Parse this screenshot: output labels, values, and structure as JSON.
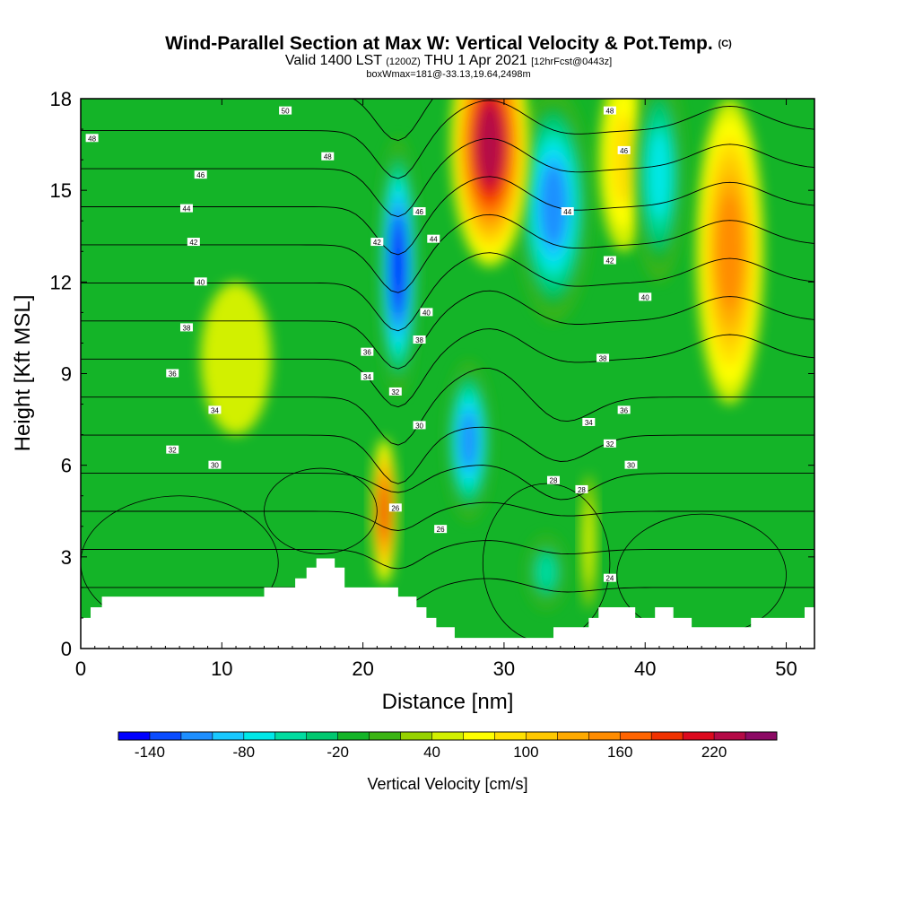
{
  "header": {
    "title_main": "Wind-Parallel Section at Max W: Vertical Velocity & Pot.Temp.",
    "title_suffix": "(C)",
    "valid_a": "Valid 1400 LST",
    "valid_b": "(1200Z)",
    "valid_c": "THU 1 Apr 2021",
    "valid_d": "[12hrFcst@0443z]",
    "boxinfo": "boxWmax=181@-33.13,19.64,2498m"
  },
  "chart_data": {
    "type": "heatmap",
    "xlabel": "Distance [nm]",
    "ylabel": "Height [Kft MSL]",
    "xlim": [
      0,
      52
    ],
    "ylim": [
      0,
      18
    ],
    "xticks": [
      0,
      10,
      20,
      30,
      40,
      50
    ],
    "yticks": [
      0,
      3,
      6,
      9,
      12,
      15,
      18
    ],
    "colorbar": {
      "title": "Vertical Velocity [cm/s]",
      "min": -160,
      "max": 260,
      "step": 20,
      "tick_labels": [
        "-140",
        "-80",
        "-20",
        "40",
        "100",
        "160",
        "220"
      ],
      "tick_values": [
        -140,
        -80,
        -20,
        40,
        100,
        160,
        220
      ],
      "colors": [
        "#0000ff",
        "#0a4cff",
        "#1e8fff",
        "#19c8ff",
        "#00e8e8",
        "#00dca0",
        "#00c870",
        "#14b428",
        "#3cb414",
        "#96d200",
        "#d2f000",
        "#ffff00",
        "#ffe100",
        "#ffc800",
        "#ffaa00",
        "#ff8c00",
        "#ff6400",
        "#f03200",
        "#dc0a1e",
        "#b40a46",
        "#8c0a64"
      ]
    },
    "velocity_cells": [
      {
        "x": 22.5,
        "y": 12.5,
        "rx": 1.4,
        "ry": 4.2,
        "w": -150
      },
      {
        "x": 27.5,
        "y": 6.8,
        "rx": 1.6,
        "ry": 2.6,
        "w": -110
      },
      {
        "x": 33.5,
        "y": 14.5,
        "rx": 2.6,
        "ry": 3.8,
        "w": -110
      },
      {
        "x": 21.5,
        "y": 4.5,
        "rx": 0.9,
        "ry": 2.4,
        "w": 180
      },
      {
        "x": 29.0,
        "y": 16.5,
        "rx": 2.8,
        "ry": 4.0,
        "w": 220
      },
      {
        "x": 46.0,
        "y": 13.0,
        "rx": 2.4,
        "ry": 5.0,
        "w": 140
      },
      {
        "x": 11.0,
        "y": 9.5,
        "rx": 2.5,
        "ry": 2.5,
        "w": 40
      },
      {
        "x": 38.5,
        "y": 16.0,
        "rx": 1.8,
        "ry": 3.0,
        "w": 80
      },
      {
        "x": 41.0,
        "y": 15.5,
        "rx": 1.8,
        "ry": 3.5,
        "w": -70
      },
      {
        "x": 33.0,
        "y": 2.5,
        "rx": 1.4,
        "ry": 1.2,
        "w": -60
      },
      {
        "x": 36.0,
        "y": 3.5,
        "rx": 0.6,
        "ry": 2.2,
        "w": 50
      }
    ],
    "theta_contours": [
      {
        "value": 24,
        "label": "24",
        "label_x": 37.5,
        "label_y": 2.3
      },
      {
        "value": 26,
        "label": "26",
        "label_x": 25.5,
        "label_y": 3.9
      },
      {
        "value": 26,
        "label": "26",
        "label_x": 22.3,
        "label_y": 4.6
      },
      {
        "value": 28,
        "label": "28",
        "label_x": 33.5,
        "label_y": 5.5
      },
      {
        "value": 28,
        "label": "28",
        "label_x": 35.5,
        "label_y": 5.2
      },
      {
        "value": 30,
        "label": "30",
        "label_x": 9.5,
        "label_y": 6.0
      },
      {
        "value": 30,
        "label": "30",
        "label_x": 24.0,
        "label_y": 7.3
      },
      {
        "value": 30,
        "label": "30",
        "label_x": 39.0,
        "label_y": 6.0
      },
      {
        "value": 32,
        "label": "32",
        "label_x": 6.5,
        "label_y": 6.5
      },
      {
        "value": 32,
        "label": "32",
        "label_x": 22.3,
        "label_y": 8.4
      },
      {
        "value": 32,
        "label": "32",
        "label_x": 37.5,
        "label_y": 6.7
      },
      {
        "value": 34,
        "label": "34",
        "label_x": 9.5,
        "label_y": 7.8
      },
      {
        "value": 34,
        "label": "34",
        "label_x": 20.3,
        "label_y": 8.9
      },
      {
        "value": 34,
        "label": "34",
        "label_x": 36.0,
        "label_y": 7.4
      },
      {
        "value": 36,
        "label": "36",
        "label_x": 6.5,
        "label_y": 9.0
      },
      {
        "value": 36,
        "label": "36",
        "label_x": 20.3,
        "label_y": 9.7
      },
      {
        "value": 36,
        "label": "36",
        "label_x": 38.5,
        "label_y": 7.8
      },
      {
        "value": 38,
        "label": "38",
        "label_x": 7.5,
        "label_y": 10.5
      },
      {
        "value": 38,
        "label": "38",
        "label_x": 24.0,
        "label_y": 10.1
      },
      {
        "value": 38,
        "label": "38",
        "label_x": 37.0,
        "label_y": 9.5
      },
      {
        "value": 40,
        "label": "40",
        "label_x": 8.5,
        "label_y": 12.0
      },
      {
        "value": 40,
        "label": "40",
        "label_x": 24.5,
        "label_y": 11.0
      },
      {
        "value": 40,
        "label": "40",
        "label_x": 40.0,
        "label_y": 11.5
      },
      {
        "value": 42,
        "label": "42",
        "label_x": 8.0,
        "label_y": 13.3
      },
      {
        "value": 42,
        "label": "42",
        "label_x": 21.0,
        "label_y": 13.3
      },
      {
        "value": 42,
        "label": "42",
        "label_x": 37.5,
        "label_y": 12.7
      },
      {
        "value": 44,
        "label": "44",
        "label_x": 7.5,
        "label_y": 14.4
      },
      {
        "value": 44,
        "label": "44",
        "label_x": 25.0,
        "label_y": 13.4
      },
      {
        "value": 44,
        "label": "44",
        "label_x": 34.5,
        "label_y": 14.3
      },
      {
        "value": 46,
        "label": "46",
        "label_x": 8.5,
        "label_y": 15.5
      },
      {
        "value": 46,
        "label": "46",
        "label_x": 24.0,
        "label_y": 14.3
      },
      {
        "value": 46,
        "label": "46",
        "label_x": 38.5,
        "label_y": 16.3
      },
      {
        "value": 48,
        "label": "48",
        "label_x": 0.8,
        "label_y": 16.7
      },
      {
        "value": 48,
        "label": "48",
        "label_x": 17.5,
        "label_y": 16.1
      },
      {
        "value": 48,
        "label": "48",
        "label_x": 37.5,
        "label_y": 17.6
      },
      {
        "value": 50,
        "label": "50",
        "label_x": 14.5,
        "label_y": 17.6
      }
    ],
    "terrain_height": [
      {
        "x": 0.0,
        "h": 1.0
      },
      {
        "x": 0.7,
        "h": 1.0
      },
      {
        "x": 0.7,
        "h": 1.35
      },
      {
        "x": 1.5,
        "h": 1.35
      },
      {
        "x": 1.5,
        "h": 1.7
      },
      {
        "x": 13.0,
        "h": 1.7
      },
      {
        "x": 13.0,
        "h": 2.0
      },
      {
        "x": 15.2,
        "h": 2.0
      },
      {
        "x": 15.2,
        "h": 2.3
      },
      {
        "x": 16.0,
        "h": 2.3
      },
      {
        "x": 16.0,
        "h": 2.65
      },
      {
        "x": 16.7,
        "h": 2.65
      },
      {
        "x": 16.7,
        "h": 2.95
      },
      {
        "x": 18.0,
        "h": 2.95
      },
      {
        "x": 18.0,
        "h": 2.65
      },
      {
        "x": 18.7,
        "h": 2.65
      },
      {
        "x": 18.7,
        "h": 2.0
      },
      {
        "x": 22.5,
        "h": 2.0
      },
      {
        "x": 22.5,
        "h": 1.7
      },
      {
        "x": 23.8,
        "h": 1.7
      },
      {
        "x": 23.8,
        "h": 1.35
      },
      {
        "x": 24.5,
        "h": 1.35
      },
      {
        "x": 24.5,
        "h": 1.0
      },
      {
        "x": 25.2,
        "h": 1.0
      },
      {
        "x": 25.2,
        "h": 0.7
      },
      {
        "x": 26.5,
        "h": 0.7
      },
      {
        "x": 26.5,
        "h": 0.35
      },
      {
        "x": 33.5,
        "h": 0.35
      },
      {
        "x": 33.5,
        "h": 0.7
      },
      {
        "x": 36.0,
        "h": 0.7
      },
      {
        "x": 36.0,
        "h": 1.0
      },
      {
        "x": 36.7,
        "h": 1.0
      },
      {
        "x": 36.7,
        "h": 1.35
      },
      {
        "x": 39.3,
        "h": 1.35
      },
      {
        "x": 39.3,
        "h": 1.0
      },
      {
        "x": 40.7,
        "h": 1.0
      },
      {
        "x": 40.7,
        "h": 1.35
      },
      {
        "x": 42.0,
        "h": 1.35
      },
      {
        "x": 42.0,
        "h": 1.0
      },
      {
        "x": 43.3,
        "h": 1.0
      },
      {
        "x": 43.3,
        "h": 0.7
      },
      {
        "x": 47.5,
        "h": 0.7
      },
      {
        "x": 47.5,
        "h": 1.0
      },
      {
        "x": 51.3,
        "h": 1.0
      },
      {
        "x": 51.3,
        "h": 1.35
      },
      {
        "x": 52.0,
        "h": 1.35
      }
    ]
  }
}
